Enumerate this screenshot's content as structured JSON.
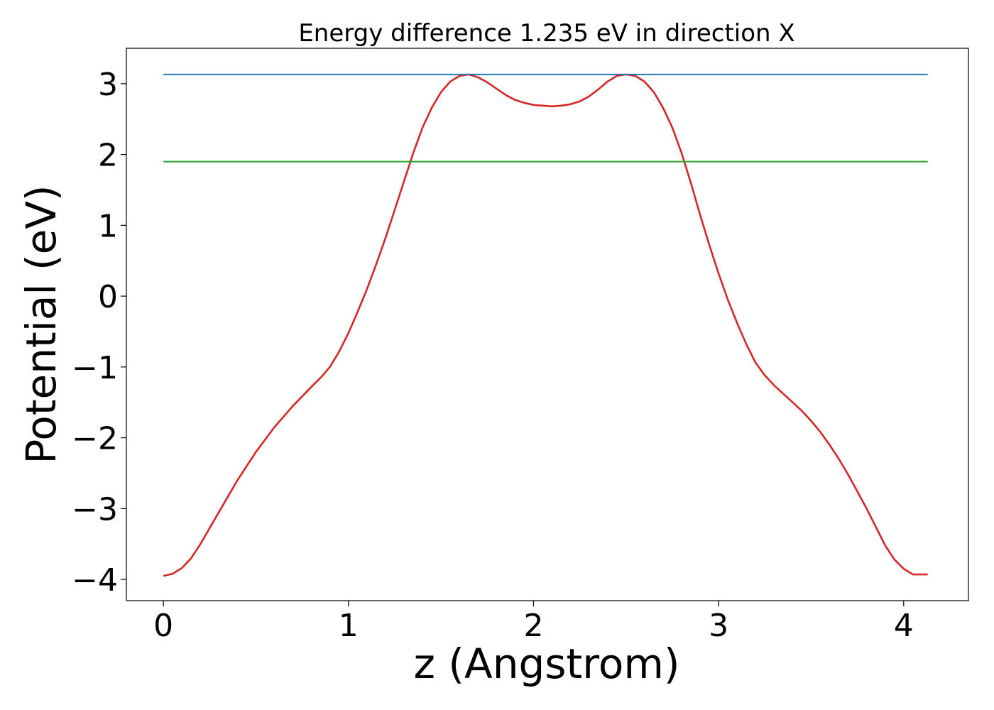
{
  "chart_data": {
    "type": "line",
    "title": "Energy difference 1.235 eV in direction X",
    "xlabel": "z (Angstrom)",
    "ylabel": "Potential (eV)",
    "xlim": [
      -0.2,
      4.35
    ],
    "ylim": [
      -4.3,
      3.5
    ],
    "xticks": [
      0,
      1,
      2,
      3,
      4
    ],
    "xtick_labels": [
      "0",
      "1",
      "2",
      "3",
      "4"
    ],
    "yticks": [
      -4,
      -3,
      -2,
      -1,
      0,
      1,
      2,
      3
    ],
    "ytick_labels": [
      "−4",
      "−3",
      "−2",
      "−1",
      "0",
      "1",
      "2",
      "3"
    ],
    "grid": false,
    "series": [
      {
        "color": "#d62728",
        "x": [
          0,
          0.05,
          0.1,
          0.15,
          0.2,
          0.3,
          0.4,
          0.5,
          0.6,
          0.7,
          0.8,
          0.85,
          0.9,
          0.95,
          1.0,
          1.05,
          1.1,
          1.15,
          1.2,
          1.25,
          1.3,
          1.35,
          1.4,
          1.45,
          1.5,
          1.55,
          1.6,
          1.65,
          1.7,
          1.75,
          1.8,
          1.85,
          1.9,
          1.95,
          2.0,
          2.05,
          2.1,
          2.15,
          2.2,
          2.25,
          2.3,
          2.35,
          2.4,
          2.45,
          2.5,
          2.55,
          2.6,
          2.65,
          2.7,
          2.75,
          2.8,
          2.85,
          2.9,
          2.95,
          3.0,
          3.05,
          3.1,
          3.15,
          3.2,
          3.25,
          3.3,
          3.35,
          3.4,
          3.45,
          3.5,
          3.55,
          3.6,
          3.65,
          3.7,
          3.75,
          3.8,
          3.85,
          3.9,
          3.95,
          4.0,
          4.05,
          4.1,
          4.13
        ],
        "y": [
          -3.95,
          -3.92,
          -3.84,
          -3.7,
          -3.5,
          -3.05,
          -2.6,
          -2.2,
          -1.85,
          -1.55,
          -1.28,
          -1.15,
          -1.0,
          -0.78,
          -0.52,
          -0.22,
          0.1,
          0.45,
          0.82,
          1.22,
          1.62,
          2.02,
          2.38,
          2.66,
          2.88,
          3.03,
          3.11,
          3.13,
          3.09,
          3.02,
          2.93,
          2.84,
          2.77,
          2.73,
          2.7,
          2.69,
          2.68,
          2.69,
          2.71,
          2.75,
          2.82,
          2.92,
          3.03,
          3.11,
          3.13,
          3.11,
          3.03,
          2.88,
          2.66,
          2.38,
          2.02,
          1.6,
          1.15,
          0.72,
          0.32,
          -0.05,
          -0.38,
          -0.68,
          -0.94,
          -1.12,
          -1.26,
          -1.38,
          -1.5,
          -1.62,
          -1.76,
          -1.92,
          -2.1,
          -2.3,
          -2.52,
          -2.76,
          -3.0,
          -3.26,
          -3.52,
          -3.72,
          -3.85,
          -3.93,
          -3.93,
          -3.93
        ]
      },
      {
        "color": "#1f77b4",
        "x": [
          0,
          4.13
        ],
        "y": [
          3.13,
          3.13
        ]
      },
      {
        "color": "#2ca02c",
        "x": [
          0,
          4.13
        ],
        "y": [
          1.9,
          1.9
        ]
      }
    ]
  }
}
